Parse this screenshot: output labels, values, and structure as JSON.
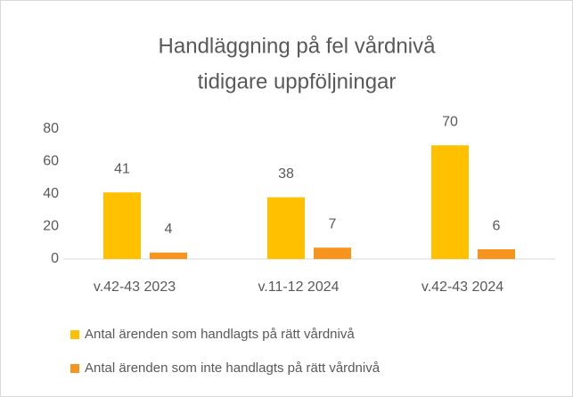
{
  "chart_data": {
    "type": "bar",
    "title": [
      "Handläggning på fel vårdnivå",
      "tidigare uppföljningar"
    ],
    "categories": [
      "v.42-43 2023",
      "v.11-12 2024",
      "v.42-43 2024"
    ],
    "series": [
      {
        "name": "Antal ärenden som handlagts på rätt vårdnivå",
        "color": "#ffc000",
        "values": [
          41,
          38,
          70
        ]
      },
      {
        "name": "Antal ärenden som inte handlagts på rätt vårdnivå",
        "color": "#f7941d",
        "values": [
          4,
          7,
          6
        ]
      }
    ],
    "ylim": [
      0,
      80
    ],
    "yticks": [
      0,
      20,
      40,
      60,
      80
    ],
    "grid": false,
    "legend": "bottom"
  }
}
